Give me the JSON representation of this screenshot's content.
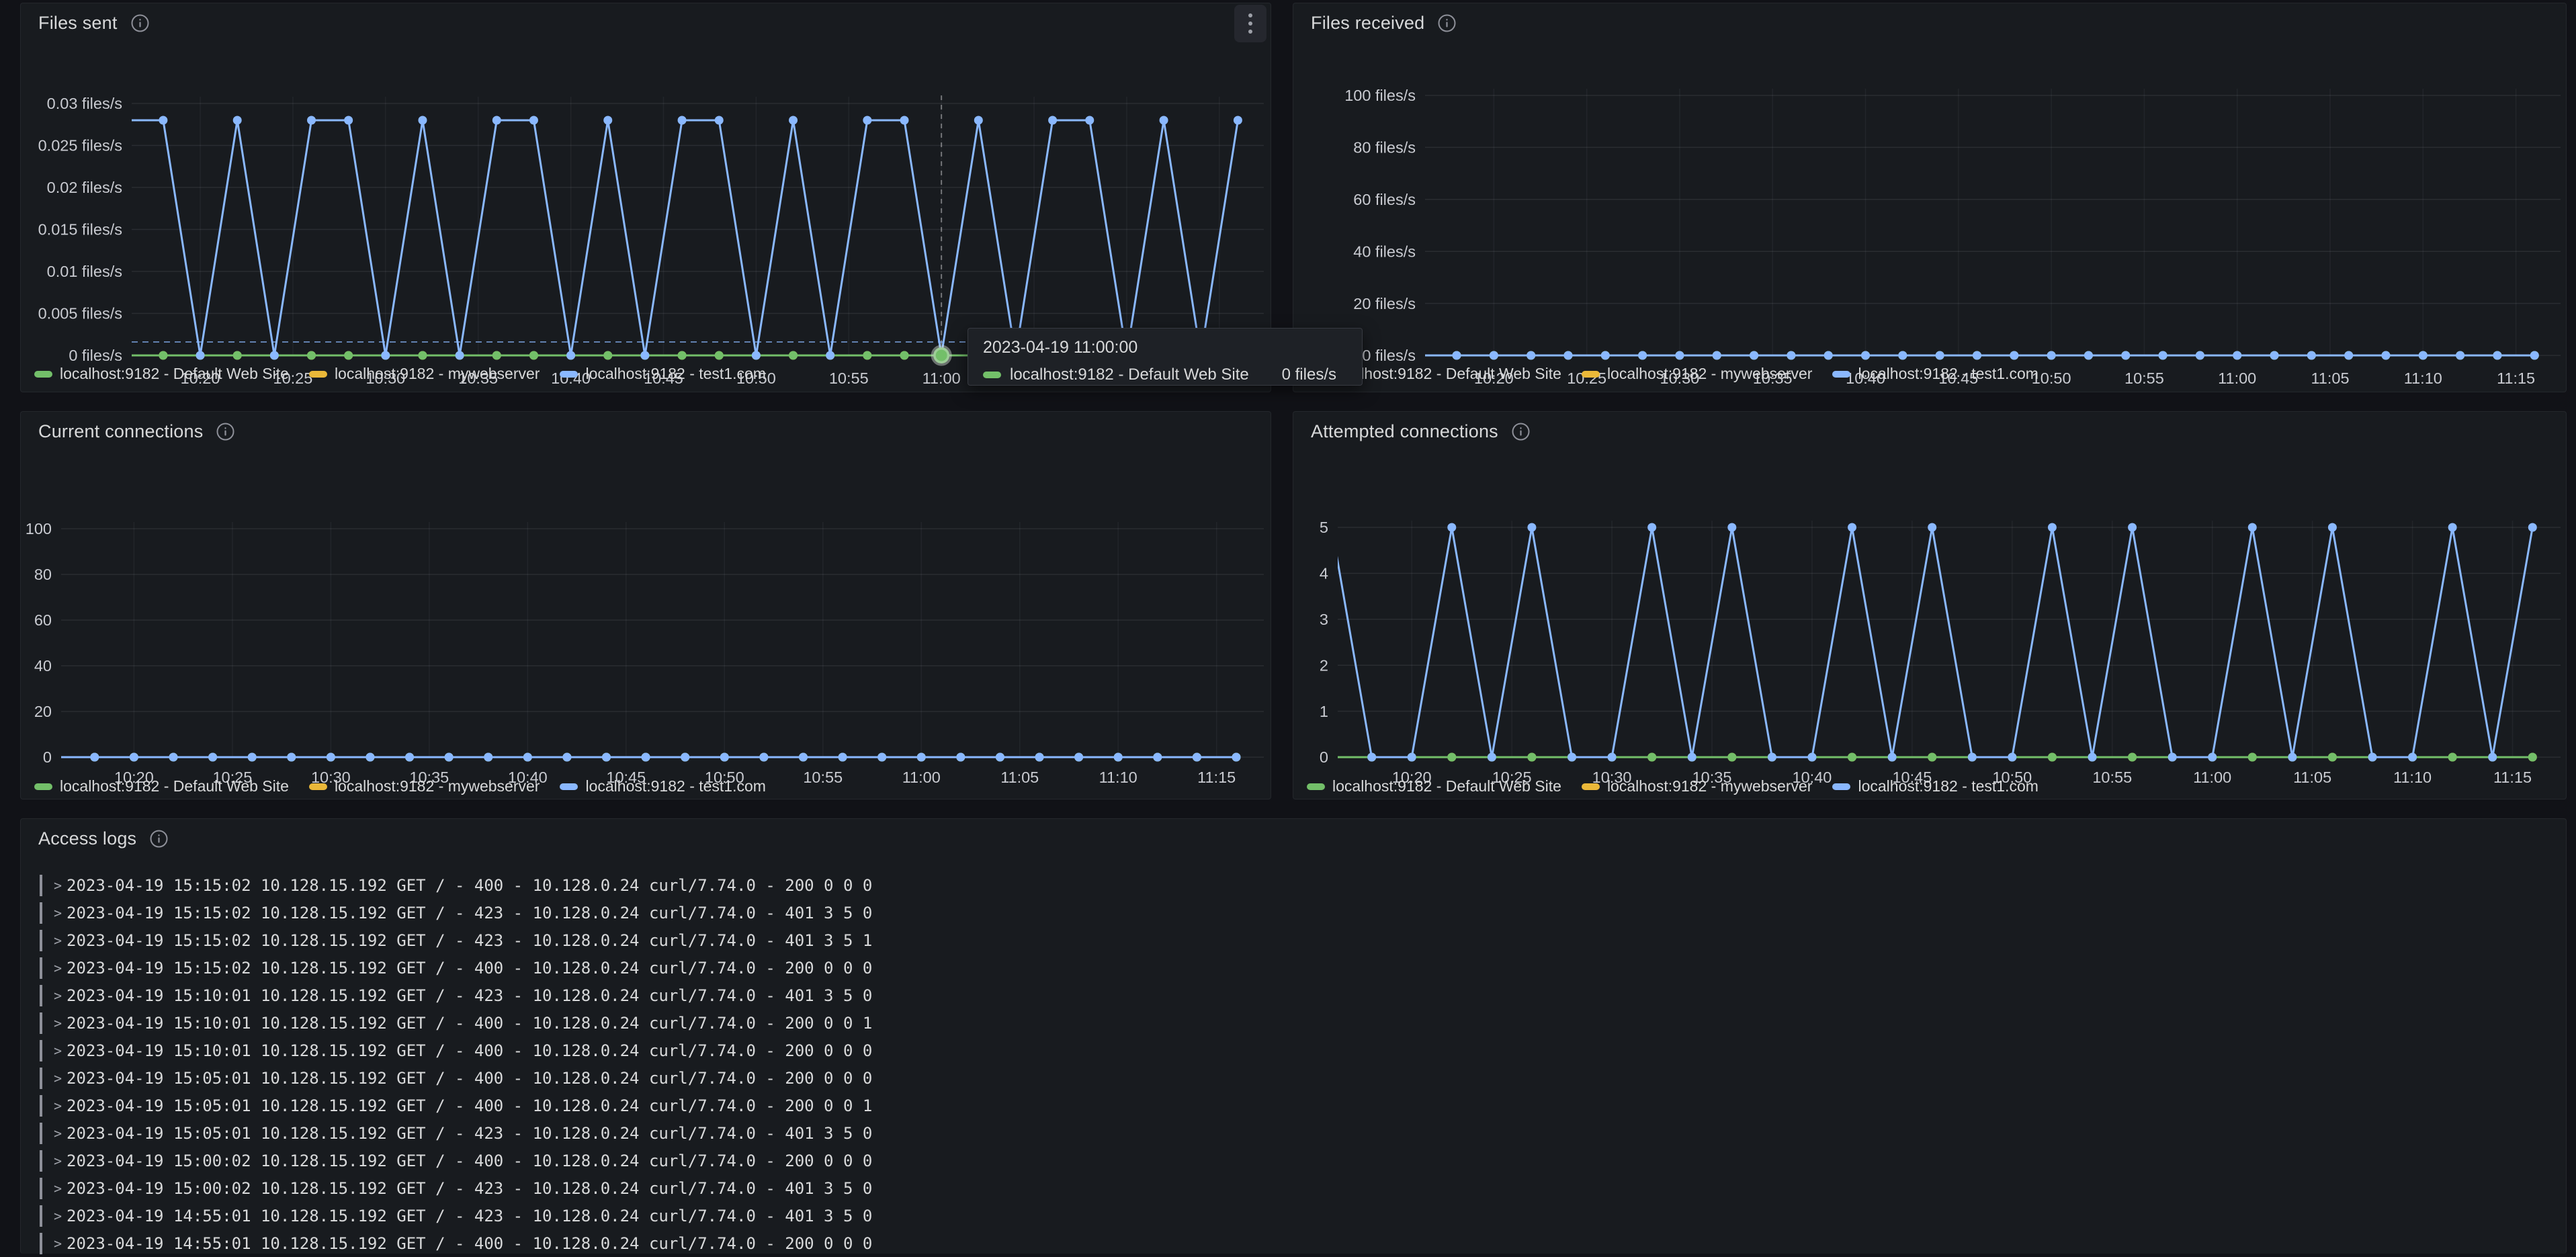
{
  "page": {
    "app": "Grafana dashboard",
    "theme_accent": "#8AB8FF"
  },
  "colors": {
    "green": "#73BF69",
    "yellow": "#EAB839",
    "blue": "#8AB8FF",
    "axis_text": "#C9CBD1",
    "grid": "rgba(204,204,220,0.10)"
  },
  "panels": {
    "files_sent": {
      "title": "Files sent"
    },
    "files_received": {
      "title": "Files received"
    },
    "current_connections": {
      "title": "Current connections"
    },
    "attempted_connections": {
      "title": "Attempted connections"
    },
    "access_logs": {
      "title": "Access logs"
    }
  },
  "tooltip": {
    "time": "2023-04-19 11:00:00",
    "series": "localhost:9182 - Default Web Site",
    "value": "0 files/s",
    "swatch_color": "#73BF69"
  },
  "chart_data": [
    {
      "id": "files_sent",
      "type": "line",
      "title": "Files sent",
      "unit": "files/s",
      "ylim": [
        0,
        0.03
      ],
      "y_ticks": [
        {
          "v": 0.03,
          "label": "0.03 files/s"
        },
        {
          "v": 0.025,
          "label": "0.025 files/s"
        },
        {
          "v": 0.02,
          "label": "0.02 files/s"
        },
        {
          "v": 0.015,
          "label": "0.015 files/s"
        },
        {
          "v": 0.01,
          "label": "0.01 files/s"
        },
        {
          "v": 0.005,
          "label": "0.005 files/s"
        },
        {
          "v": 0,
          "label": "0 files/s"
        }
      ],
      "x_minutes_after_10": [
        16,
        18,
        20,
        22,
        24,
        26,
        28,
        30,
        32,
        34,
        36,
        38,
        40,
        42,
        44,
        46,
        48,
        50,
        52,
        54,
        56,
        58,
        60,
        62,
        64,
        66,
        68,
        70,
        72,
        74,
        76
      ],
      "x_ticks": [
        {
          "t": 20,
          "label": "10:20"
        },
        {
          "t": 25,
          "label": "10:25"
        },
        {
          "t": 30,
          "label": "10:30"
        },
        {
          "t": 35,
          "label": "10:35"
        },
        {
          "t": 40,
          "label": "10:40"
        },
        {
          "t": 45,
          "label": "10:45"
        },
        {
          "t": 50,
          "label": "10:50"
        },
        {
          "t": 55,
          "label": "10:55"
        },
        {
          "t": 60,
          "label": "11:00"
        },
        {
          "t": 65,
          "label": "11:05"
        },
        {
          "t": 70,
          "label": "11:10"
        },
        {
          "t": 75,
          "label": "11:15"
        }
      ],
      "series": [
        {
          "name": "localhost:9182 - Default Web Site",
          "color": "#73BF69",
          "values": [
            0,
            0,
            0,
            0,
            0,
            0,
            0,
            0,
            0,
            0,
            0,
            0,
            0,
            0,
            0,
            0,
            0,
            0,
            0,
            0,
            0,
            0,
            0,
            0,
            0,
            0,
            0,
            0,
            0,
            0,
            0
          ]
        },
        {
          "name": "localhost:9182 - mywebserver",
          "color": "#EAB839",
          "values": [
            0,
            0,
            0,
            0,
            0,
            0,
            0,
            0,
            0,
            0,
            0,
            0,
            0,
            0,
            0,
            0,
            0,
            0,
            0,
            0,
            0,
            0,
            0,
            0,
            0,
            0,
            0,
            0,
            0,
            0,
            0
          ]
        },
        {
          "name": "localhost:9182 - test1.com",
          "color": "#8AB8FF",
          "values": [
            0.028,
            0.028,
            0,
            0.028,
            0,
            0.028,
            0.028,
            0,
            0.028,
            0,
            0.028,
            0.028,
            0,
            0.028,
            0,
            0.028,
            0.028,
            0,
            0.028,
            0,
            0.028,
            0.028,
            0,
            0.028,
            0,
            0.028,
            0.028,
            0,
            0.028,
            0,
            0.028
          ]
        }
      ],
      "hover": {
        "t": 60,
        "cross_value": 0.0016,
        "point_series": 0,
        "point_value": 0
      }
    },
    {
      "id": "files_received",
      "type": "line",
      "title": "Files received",
      "unit": "files/s",
      "ylim": [
        0,
        100
      ],
      "y_ticks": [
        {
          "v": 100,
          "label": "100 files/s"
        },
        {
          "v": 80,
          "label": "80 files/s"
        },
        {
          "v": 60,
          "label": "60 files/s"
        },
        {
          "v": 40,
          "label": "40 files/s"
        },
        {
          "v": 20,
          "label": "20 files/s"
        },
        {
          "v": 0,
          "label": "0 files/s"
        }
      ],
      "x_minutes_after_10": [
        16,
        18,
        20,
        22,
        24,
        26,
        28,
        30,
        32,
        34,
        36,
        38,
        40,
        42,
        44,
        46,
        48,
        50,
        52,
        54,
        56,
        58,
        60,
        62,
        64,
        66,
        68,
        70,
        72,
        74,
        76
      ],
      "x_ticks": [
        {
          "t": 20,
          "label": "10:20"
        },
        {
          "t": 25,
          "label": "10:25"
        },
        {
          "t": 30,
          "label": "10:30"
        },
        {
          "t": 35,
          "label": "10:35"
        },
        {
          "t": 40,
          "label": "10:40"
        },
        {
          "t": 45,
          "label": "10:45"
        },
        {
          "t": 50,
          "label": "10:50"
        },
        {
          "t": 55,
          "label": "10:55"
        },
        {
          "t": 60,
          "label": "11:00"
        },
        {
          "t": 65,
          "label": "11:05"
        },
        {
          "t": 70,
          "label": "11:10"
        },
        {
          "t": 75,
          "label": "11:15"
        }
      ],
      "series": [
        {
          "name": "localhost:9182 - Default Web Site",
          "color": "#73BF69",
          "values": [
            0,
            0,
            0,
            0,
            0,
            0,
            0,
            0,
            0,
            0,
            0,
            0,
            0,
            0,
            0,
            0,
            0,
            0,
            0,
            0,
            0,
            0,
            0,
            0,
            0,
            0,
            0,
            0,
            0,
            0,
            0
          ]
        },
        {
          "name": "localhost:9182 - mywebserver",
          "color": "#EAB839",
          "values": [
            0,
            0,
            0,
            0,
            0,
            0,
            0,
            0,
            0,
            0,
            0,
            0,
            0,
            0,
            0,
            0,
            0,
            0,
            0,
            0,
            0,
            0,
            0,
            0,
            0,
            0,
            0,
            0,
            0,
            0,
            0
          ]
        },
        {
          "name": "localhost:9182 - test1.com",
          "color": "#8AB8FF",
          "values": [
            0,
            0,
            0,
            0,
            0,
            0,
            0,
            0,
            0,
            0,
            0,
            0,
            0,
            0,
            0,
            0,
            0,
            0,
            0,
            0,
            0,
            0,
            0,
            0,
            0,
            0,
            0,
            0,
            0,
            0,
            0
          ]
        }
      ]
    },
    {
      "id": "current_connections",
      "type": "line",
      "title": "Current connections",
      "unit": "",
      "ylim": [
        0,
        100
      ],
      "y_ticks": [
        {
          "v": 100,
          "label": "100"
        },
        {
          "v": 80,
          "label": "80"
        },
        {
          "v": 60,
          "label": "60"
        },
        {
          "v": 40,
          "label": "40"
        },
        {
          "v": 20,
          "label": "20"
        },
        {
          "v": 0,
          "label": "0"
        }
      ],
      "x_minutes_after_10": [
        16,
        18,
        20,
        22,
        24,
        26,
        28,
        30,
        32,
        34,
        36,
        38,
        40,
        42,
        44,
        46,
        48,
        50,
        52,
        54,
        56,
        58,
        60,
        62,
        64,
        66,
        68,
        70,
        72,
        74,
        76
      ],
      "x_ticks": [
        {
          "t": 20,
          "label": "10:20"
        },
        {
          "t": 25,
          "label": "10:25"
        },
        {
          "t": 30,
          "label": "10:30"
        },
        {
          "t": 35,
          "label": "10:35"
        },
        {
          "t": 40,
          "label": "10:40"
        },
        {
          "t": 45,
          "label": "10:45"
        },
        {
          "t": 50,
          "label": "10:50"
        },
        {
          "t": 55,
          "label": "10:55"
        },
        {
          "t": 60,
          "label": "11:00"
        },
        {
          "t": 65,
          "label": "11:05"
        },
        {
          "t": 70,
          "label": "11:10"
        },
        {
          "t": 75,
          "label": "11:15"
        }
      ],
      "series": [
        {
          "name": "localhost:9182 - Default Web Site",
          "color": "#73BF69",
          "values": [
            0,
            0,
            0,
            0,
            0,
            0,
            0,
            0,
            0,
            0,
            0,
            0,
            0,
            0,
            0,
            0,
            0,
            0,
            0,
            0,
            0,
            0,
            0,
            0,
            0,
            0,
            0,
            0,
            0,
            0,
            0
          ]
        },
        {
          "name": "localhost:9182 - mywebserver",
          "color": "#EAB839",
          "values": [
            0,
            0,
            0,
            0,
            0,
            0,
            0,
            0,
            0,
            0,
            0,
            0,
            0,
            0,
            0,
            0,
            0,
            0,
            0,
            0,
            0,
            0,
            0,
            0,
            0,
            0,
            0,
            0,
            0,
            0,
            0
          ]
        },
        {
          "name": "localhost:9182 - test1.com",
          "color": "#8AB8FF",
          "values": [
            0,
            0,
            0,
            0,
            0,
            0,
            0,
            0,
            0,
            0,
            0,
            0,
            0,
            0,
            0,
            0,
            0,
            0,
            0,
            0,
            0,
            0,
            0,
            0,
            0,
            0,
            0,
            0,
            0,
            0,
            0
          ]
        }
      ]
    },
    {
      "id": "attempted_connections",
      "type": "line",
      "title": "Attempted connections",
      "unit": "",
      "ylim": [
        0,
        5
      ],
      "y_ticks": [
        {
          "v": 5,
          "label": "5"
        },
        {
          "v": 4,
          "label": "4"
        },
        {
          "v": 3,
          "label": "3"
        },
        {
          "v": 2,
          "label": "2"
        },
        {
          "v": 1,
          "label": "1"
        },
        {
          "v": 0,
          "label": "0"
        }
      ],
      "x_minutes_after_10": [
        16,
        18,
        20,
        22,
        24,
        26,
        28,
        30,
        32,
        34,
        36,
        38,
        40,
        42,
        44,
        46,
        48,
        50,
        52,
        54,
        56,
        58,
        60,
        62,
        64,
        66,
        68,
        70,
        72,
        74,
        76
      ],
      "x_ticks": [
        {
          "t": 20,
          "label": "10:20"
        },
        {
          "t": 25,
          "label": "10:25"
        },
        {
          "t": 30,
          "label": "10:30"
        },
        {
          "t": 35,
          "label": "10:35"
        },
        {
          "t": 40,
          "label": "10:40"
        },
        {
          "t": 45,
          "label": "10:45"
        },
        {
          "t": 50,
          "label": "10:50"
        },
        {
          "t": 55,
          "label": "10:55"
        },
        {
          "t": 60,
          "label": "11:00"
        },
        {
          "t": 65,
          "label": "11:05"
        },
        {
          "t": 70,
          "label": "11:10"
        },
        {
          "t": 75,
          "label": "11:15"
        }
      ],
      "series": [
        {
          "name": "localhost:9182 - Default Web Site",
          "color": "#73BF69",
          "values": [
            0,
            0,
            0,
            0,
            0,
            0,
            0,
            0,
            0,
            0,
            0,
            0,
            0,
            0,
            0,
            0,
            0,
            0,
            0,
            0,
            0,
            0,
            0,
            0,
            0,
            0,
            0,
            0,
            0,
            0,
            0
          ]
        },
        {
          "name": "localhost:9182 - mywebserver",
          "color": "#EAB839",
          "values": [
            0,
            0,
            0,
            0,
            0,
            0,
            0,
            0,
            0,
            0,
            0,
            0,
            0,
            0,
            0,
            0,
            0,
            0,
            0,
            0,
            0,
            0,
            0,
            0,
            0,
            0,
            0,
            0,
            0,
            0,
            0
          ]
        },
        {
          "name": "localhost:9182 - test1.com",
          "color": "#8AB8FF",
          "values": [
            5,
            0,
            0,
            5,
            0,
            5,
            0,
            0,
            5,
            0,
            5,
            0,
            0,
            5,
            0,
            5,
            0,
            0,
            5,
            0,
            5,
            0,
            0,
            5,
            0,
            5,
            0,
            0,
            5,
            0,
            5
          ]
        }
      ]
    }
  ],
  "logs": [
    "2023-04-19 15:15:02 10.128.15.192 GET / - 400 - 10.128.0.24 curl/7.74.0 - 200 0 0 0",
    "2023-04-19 15:15:02 10.128.15.192 GET / - 423 - 10.128.0.24 curl/7.74.0 - 401 3 5 0",
    "2023-04-19 15:15:02 10.128.15.192 GET / - 423 - 10.128.0.24 curl/7.74.0 - 401 3 5 1",
    "2023-04-19 15:15:02 10.128.15.192 GET / - 400 - 10.128.0.24 curl/7.74.0 - 200 0 0 0",
    "2023-04-19 15:10:01 10.128.15.192 GET / - 423 - 10.128.0.24 curl/7.74.0 - 401 3 5 0",
    "2023-04-19 15:10:01 10.128.15.192 GET / - 400 - 10.128.0.24 curl/7.74.0 - 200 0 0 1",
    "2023-04-19 15:10:01 10.128.15.192 GET / - 400 - 10.128.0.24 curl/7.74.0 - 200 0 0 0",
    "2023-04-19 15:05:01 10.128.15.192 GET / - 400 - 10.128.0.24 curl/7.74.0 - 200 0 0 0",
    "2023-04-19 15:05:01 10.128.15.192 GET / - 400 - 10.128.0.24 curl/7.74.0 - 200 0 0 1",
    "2023-04-19 15:05:01 10.128.15.192 GET / - 423 - 10.128.0.24 curl/7.74.0 - 401 3 5 0",
    "2023-04-19 15:00:02 10.128.15.192 GET / - 400 - 10.128.0.24 curl/7.74.0 - 200 0 0 0",
    "2023-04-19 15:00:02 10.128.15.192 GET / - 423 - 10.128.0.24 curl/7.74.0 - 401 3 5 0",
    "2023-04-19 14:55:01 10.128.15.192 GET / - 423 - 10.128.0.24 curl/7.74.0 - 401 3 5 0",
    "2023-04-19 14:55:01 10.128.15.192 GET / - 400 - 10.128.0.24 curl/7.74.0 - 200 0 0 0"
  ]
}
